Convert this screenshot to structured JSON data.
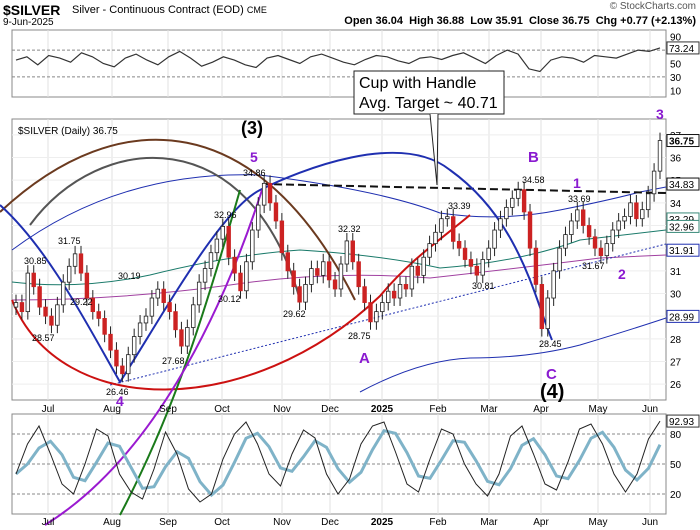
{
  "header": {
    "ticker": "$SILVER",
    "contract": "Silver - Continuous Contract (EOD)",
    "exchange": "CME",
    "date": "9-Jun-2025",
    "watermark": "© StockCharts.com",
    "open_label": "Open",
    "open": "36.04",
    "high_label": "High",
    "high": "36.88",
    "low_label": "Low",
    "low": "35.91",
    "close_label": "Close",
    "close": "36.75",
    "chg_label": "Chg",
    "chg": "+0.77 (+2.13%)"
  },
  "price_panel_label": "$SILVER (Daily) 36.75",
  "callout": {
    "line1": "Cup with Handle",
    "line2": "Avg. Target ~ 40.71"
  },
  "chart_data": [
    {
      "type": "line",
      "panel": "rsi",
      "y_ticks": [
        "90",
        "70",
        "50",
        "30",
        "10"
      ],
      "last_value_label": "73.24",
      "levels": [
        70,
        30
      ],
      "values": [
        55,
        60,
        48,
        62,
        58,
        52,
        66,
        60,
        50,
        45,
        58,
        64,
        55,
        48,
        60,
        68,
        58,
        46,
        52,
        60,
        55,
        48,
        44,
        58,
        62,
        56,
        50,
        60,
        64,
        58,
        52,
        48,
        56,
        62,
        60,
        54,
        50,
        58,
        60,
        56,
        62,
        66,
        58,
        50,
        62,
        70,
        64,
        42,
        38,
        55,
        60,
        58,
        52,
        62,
        60,
        58,
        64,
        70,
        68,
        73.24
      ]
    },
    {
      "type": "candlestick",
      "panel": "price",
      "ylim": [
        25.3,
        37.7
      ],
      "y_ticks": [
        26,
        27,
        28,
        29,
        30,
        31,
        32,
        33,
        34,
        35,
        36,
        37
      ],
      "x_ticks": [
        "Jul",
        "Aug",
        "Sep",
        "Oct",
        "Nov",
        "Dec",
        "2025",
        "Feb",
        "Mar",
        "Apr",
        "May",
        "Jun"
      ],
      "last_value_labels": [
        "36.75",
        "34.83",
        "33.29",
        "32.96",
        "31.91",
        "28.99"
      ],
      "close": [
        29.6,
        29.2,
        30.9,
        30.3,
        29.4,
        29.0,
        28.6,
        29.5,
        30.5,
        31.2,
        31.75,
        30.9,
        29.8,
        29.2,
        28.9,
        28.2,
        27.5,
        26.8,
        26.46,
        27.3,
        28.1,
        28.7,
        29.0,
        29.8,
        30.19,
        29.6,
        29.2,
        28.4,
        27.68,
        28.5,
        29.5,
        30.5,
        31.1,
        31.8,
        32.4,
        32.96,
        31.6,
        30.9,
        30.12,
        31.4,
        32.8,
        33.9,
        34.86,
        34.0,
        33.2,
        31.8,
        31.0,
        30.3,
        29.62,
        30.4,
        31.1,
        30.8,
        31.4,
        30.6,
        30.2,
        31.3,
        32.32,
        31.4,
        30.3,
        29.6,
        28.75,
        29.2,
        29.6,
        30.1,
        29.8,
        30.4,
        30.2,
        31.2,
        30.8,
        31.6,
        32.2,
        32.7,
        33.3,
        33.39,
        32.3,
        32.0,
        31.5,
        31.2,
        30.81,
        31.5,
        32.0,
        32.8,
        33.3,
        33.8,
        34.2,
        34.58,
        33.6,
        32.0,
        30.4,
        28.45,
        29.8,
        31.0,
        32.0,
        32.6,
        33.2,
        33.69,
        33.0,
        32.5,
        32.0,
        31.67,
        32.2,
        32.8,
        33.2,
        33.4,
        34.0,
        33.3,
        33.7,
        34.4,
        35.4,
        36.75
      ]
    },
    {
      "type": "line",
      "panel": "stochastic",
      "y_ticks": [
        "80",
        "50",
        "20"
      ],
      "last_value_label": "92.93",
      "values": [
        40,
        70,
        88,
        60,
        30,
        20,
        50,
        85,
        78,
        40,
        22,
        15,
        45,
        82,
        60,
        25,
        12,
        20,
        55,
        80,
        92,
        70,
        40,
        28,
        60,
        84,
        76,
        40,
        20,
        35,
        70,
        88,
        92,
        62,
        30,
        22,
        55,
        85,
        80,
        50,
        30,
        18,
        40,
        78,
        88,
        60,
        30,
        24,
        52,
        85,
        90,
        70,
        40,
        22,
        40,
        75,
        92.93
      ]
    }
  ],
  "annotations": {
    "price_labels": [
      "30.85",
      "31.75",
      "28.57",
      "29.22",
      "26.46",
      "30.19",
      "27.68",
      "32.96",
      "30.12",
      "34.86",
      "29.62",
      "32.32",
      "28.75",
      "33.39",
      "30.81",
      "34.58",
      "28.45",
      "33.69",
      "31.67"
    ],
    "waves": [
      "(3)",
      "5",
      "(4)",
      "A",
      "B",
      "C",
      "1",
      "2",
      "3",
      "4"
    ]
  }
}
